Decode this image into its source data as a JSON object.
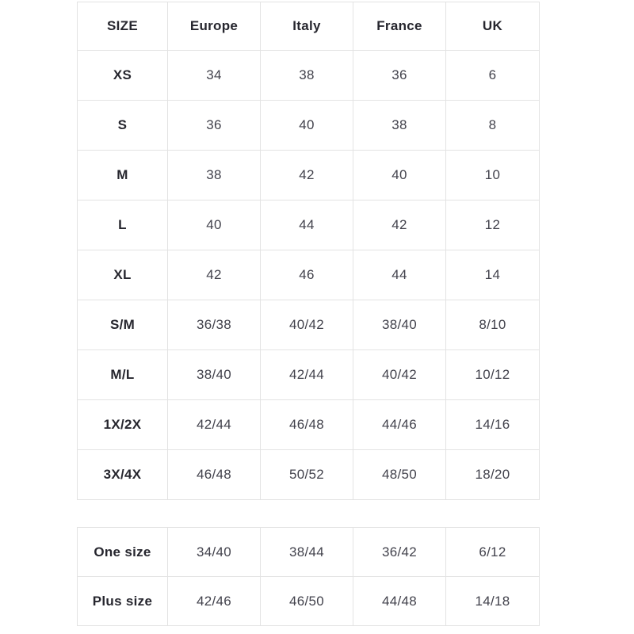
{
  "colors": {
    "background": "#ffffff",
    "grid_border": "#e3e3e3",
    "header_text": "#26262e",
    "cell_text": "#42424c"
  },
  "chart_data": [
    {
      "type": "table",
      "columns": [
        "SIZE",
        "Europe",
        "Italy",
        "France",
        "UK"
      ],
      "rows": [
        [
          "XS",
          "34",
          "38",
          "36",
          "6"
        ],
        [
          "S",
          "36",
          "40",
          "38",
          "8"
        ],
        [
          "M",
          "38",
          "42",
          "40",
          "10"
        ],
        [
          "L",
          "40",
          "44",
          "42",
          "12"
        ],
        [
          "XL",
          "42",
          "46",
          "44",
          "14"
        ],
        [
          "S/M",
          "36/38",
          "40/42",
          "38/40",
          "8/10"
        ],
        [
          "M/L",
          "38/40",
          "42/44",
          "40/42",
          "10/12"
        ],
        [
          "1X/2X",
          "42/44",
          "46/48",
          "44/46",
          "14/16"
        ],
        [
          "3X/4X",
          "46/48",
          "50/52",
          "48/50",
          "18/20"
        ]
      ],
      "layout": {
        "grid": true,
        "header_row": true,
        "bold_first_column": true
      }
    },
    {
      "type": "table",
      "rows": [
        [
          "One size",
          "34/40",
          "38/44",
          "36/42",
          "6/12"
        ],
        [
          "Plus size",
          "42/46",
          "46/50",
          "44/48",
          "14/18"
        ]
      ],
      "layout": {
        "grid": true,
        "header_row": false,
        "bold_first_column": true
      }
    }
  ]
}
